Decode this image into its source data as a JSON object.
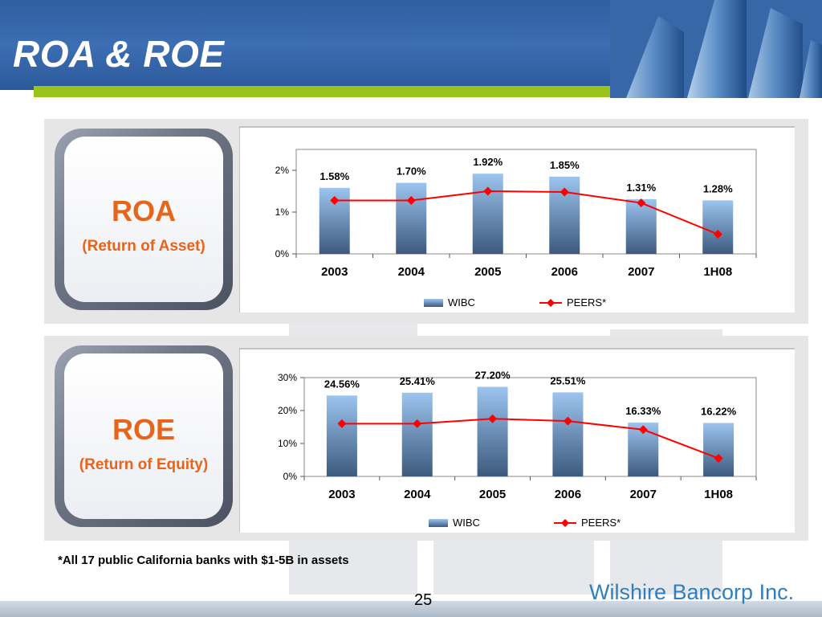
{
  "header": {
    "title": "ROA & ROE"
  },
  "colors": {
    "bar_top": "#9cc4ee",
    "bar_bottom": "#3d5a7e",
    "line": "#ff0000",
    "marker": "#ff0000",
    "badge_text": "#e8641a"
  },
  "roa_panel": {
    "title": "ROA",
    "subtitle": "(Return of Asset)"
  },
  "roe_panel": {
    "title": "ROE",
    "subtitle": "(Return of Equity)"
  },
  "chart_data": [
    {
      "type": "bar",
      "categories": [
        "2003",
        "2004",
        "2005",
        "2006",
        "2007",
        "1H08"
      ],
      "series": [
        {
          "name": "WIBC",
          "type": "bar",
          "values": [
            1.58,
            1.7,
            1.92,
            1.85,
            1.31,
            1.28
          ],
          "labels": [
            "1.58%",
            "1.70%",
            "1.92%",
            "1.85%",
            "1.31%",
            "1.28%"
          ]
        },
        {
          "name": "PEERS*",
          "type": "line",
          "values": [
            1.28,
            1.28,
            1.5,
            1.48,
            1.22,
            0.47
          ]
        }
      ],
      "yticks": [
        "0%",
        "1%",
        "2%"
      ],
      "ylim": [
        0,
        2.5
      ],
      "legend": "bottom"
    },
    {
      "type": "bar",
      "categories": [
        "2003",
        "2004",
        "2005",
        "2006",
        "2007",
        "1H08"
      ],
      "series": [
        {
          "name": "WIBC",
          "type": "bar",
          "values": [
            24.56,
            25.41,
            27.2,
            25.51,
            16.33,
            16.22
          ],
          "labels": [
            "24.56%",
            "25.41%",
            "27.20%",
            "25.51%",
            "16.33%",
            "16.22%"
          ]
        },
        {
          "name": "PEERS*",
          "type": "line",
          "values": [
            16.0,
            16.0,
            17.5,
            16.8,
            14.2,
            5.5
          ]
        }
      ],
      "yticks": [
        "0%",
        "10%",
        "20%",
        "30%"
      ],
      "ylim": [
        0,
        30
      ],
      "legend": "bottom"
    }
  ],
  "footnote": "*All 17 public California banks with $1-5B in assets",
  "footer": {
    "page_number": "25",
    "brand": "Wilshire Bancorp Inc."
  }
}
